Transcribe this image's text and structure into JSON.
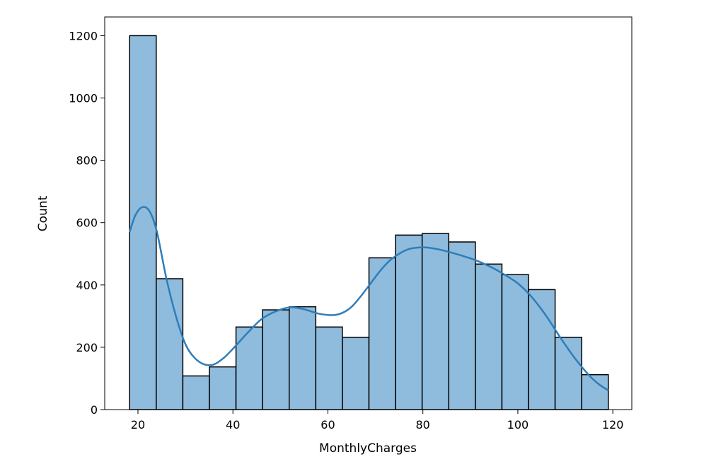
{
  "chart_data": {
    "type": "bar",
    "subtype": "histogram with kde",
    "title": "",
    "xlabel": "MonthlyCharges",
    "ylabel": "Count",
    "xlim": [
      13,
      124
    ],
    "ylim": [
      0,
      1260
    ],
    "xticks": [
      20,
      40,
      60,
      80,
      100,
      120
    ],
    "yticks": [
      0,
      200,
      400,
      600,
      800,
      1000,
      1200
    ],
    "bin_width": 5.6,
    "bins": [
      {
        "x0": 18.25,
        "x1": 23.85,
        "count": 1200
      },
      {
        "x0": 23.85,
        "x1": 29.45,
        "count": 420
      },
      {
        "x0": 29.45,
        "x1": 35.05,
        "count": 108
      },
      {
        "x0": 35.05,
        "x1": 40.65,
        "count": 137
      },
      {
        "x0": 40.65,
        "x1": 46.25,
        "count": 265
      },
      {
        "x0": 46.25,
        "x1": 51.85,
        "count": 320
      },
      {
        "x0": 51.85,
        "x1": 57.45,
        "count": 330
      },
      {
        "x0": 57.45,
        "x1": 63.05,
        "count": 265
      },
      {
        "x0": 63.05,
        "x1": 68.65,
        "count": 232
      },
      {
        "x0": 68.65,
        "x1": 74.25,
        "count": 487
      },
      {
        "x0": 74.25,
        "x1": 79.85,
        "count": 560
      },
      {
        "x0": 79.85,
        "x1": 85.45,
        "count": 565
      },
      {
        "x0": 85.45,
        "x1": 91.05,
        "count": 538
      },
      {
        "x0": 91.05,
        "x1": 96.65,
        "count": 467
      },
      {
        "x0": 96.65,
        "x1": 102.25,
        "count": 433
      },
      {
        "x0": 102.25,
        "x1": 107.85,
        "count": 385
      },
      {
        "x0": 107.85,
        "x1": 113.45,
        "count": 232
      },
      {
        "x0": 113.45,
        "x1": 119.05,
        "count": 112
      }
    ],
    "kde": {
      "x": [
        18.25,
        19.5,
        21,
        22.5,
        24,
        26,
        28,
        30,
        32,
        34,
        36,
        38,
        40,
        43,
        46,
        49,
        52,
        55,
        58,
        61,
        63,
        65,
        67,
        69,
        71,
        73,
        75,
        77,
        79,
        81,
        83,
        85,
        88,
        91,
        94,
        97,
        100,
        103,
        106,
        109,
        112,
        115,
        117,
        119
      ],
      "y": [
        570,
        625,
        650,
        635,
        570,
        420,
        300,
        210,
        165,
        145,
        145,
        165,
        195,
        245,
        290,
        315,
        328,
        322,
        308,
        303,
        310,
        330,
        365,
        405,
        445,
        478,
        500,
        515,
        520,
        520,
        515,
        508,
        495,
        480,
        460,
        435,
        405,
        360,
        300,
        230,
        165,
        110,
        82,
        62
      ]
    },
    "colors": {
      "bar_fill": "#8fbcdc",
      "bar_edge": "#000000",
      "kde_line": "#2e7dba"
    }
  }
}
